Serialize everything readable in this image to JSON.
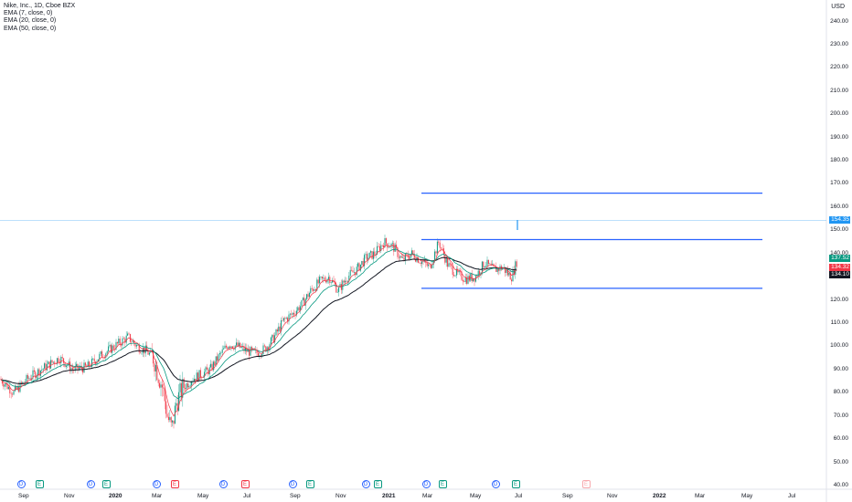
{
  "legend": {
    "symbol": "Nike, Inc., 1D, Cboe BZX",
    "ema7": "EMA (7, close, 0)",
    "ema20": "EMA (20, close, 0)",
    "ema50": "EMA (50, close, 0)"
  },
  "currency": "USD",
  "price_axis": {
    "ticks": [
      "240.00",
      "230.00",
      "220.00",
      "210.00",
      "200.00",
      "190.00",
      "180.00",
      "170.00",
      "160.00",
      "150.00",
      "140.00",
      "130.00",
      "120.00",
      "110.00",
      "100.00",
      "90.00",
      "80.00",
      "70.00",
      "60.00",
      "50.00",
      "40.00"
    ],
    "min": 40,
    "max": 240
  },
  "price_labels": [
    {
      "text": "154.35",
      "value": 154.35,
      "color": "#2196f3"
    },
    {
      "text": "137.52",
      "value": 137.52,
      "color": "#089981"
    },
    {
      "text": "134.32",
      "value": 134.32,
      "color": "#f23645"
    },
    {
      "text": "134.10",
      "value": 134.1,
      "color": "#131722"
    }
  ],
  "time_axis": {
    "ticks": [
      {
        "label": "Sep",
        "bold": false
      },
      {
        "label": "Nov",
        "bold": false
      },
      {
        "label": "2020",
        "bold": true
      },
      {
        "label": "Mar",
        "bold": false
      },
      {
        "label": "May",
        "bold": false
      },
      {
        "label": "Jul",
        "bold": false
      },
      {
        "label": "Sep",
        "bold": false
      },
      {
        "label": "Nov",
        "bold": false
      },
      {
        "label": "2021",
        "bold": true
      },
      {
        "label": "Mar",
        "bold": false
      },
      {
        "label": "May",
        "bold": false
      },
      {
        "label": "Jul",
        "bold": false
      },
      {
        "label": "Sep",
        "bold": false
      },
      {
        "label": "Nov",
        "bold": false
      },
      {
        "label": "2022",
        "bold": true
      },
      {
        "label": "Mar",
        "bold": false
      },
      {
        "label": "May",
        "bold": false
      },
      {
        "label": "Jul",
        "bold": false
      }
    ]
  },
  "events": [
    {
      "type": "div",
      "glyph": "D"
    },
    {
      "type": "earn",
      "glyph": "E"
    },
    {
      "type": "div",
      "glyph": "D"
    },
    {
      "type": "earn",
      "glyph": "E"
    },
    {
      "type": "div",
      "glyph": "D"
    },
    {
      "type": "earn-red",
      "glyph": "E"
    },
    {
      "type": "div",
      "glyph": "D"
    },
    {
      "type": "earn-red",
      "glyph": "E"
    },
    {
      "type": "div",
      "glyph": "D"
    },
    {
      "type": "earn",
      "glyph": "E"
    },
    {
      "type": "div",
      "glyph": "D"
    },
    {
      "type": "earn",
      "glyph": "E"
    },
    {
      "type": "div",
      "glyph": "D"
    },
    {
      "type": "earn",
      "glyph": "E"
    },
    {
      "type": "div",
      "glyph": "D"
    },
    {
      "type": "earn",
      "glyph": "E"
    },
    {
      "type": "earn-future",
      "glyph": "E"
    }
  ],
  "drawings": {
    "levels": [
      166,
      146,
      125
    ],
    "color": "#2962ff",
    "last_price_line": 154.35
  },
  "colors": {
    "up": "#089981",
    "down": "#f23645",
    "ema7": "#f23645",
    "ema20": "#089981",
    "ema50": "#131722"
  }
}
